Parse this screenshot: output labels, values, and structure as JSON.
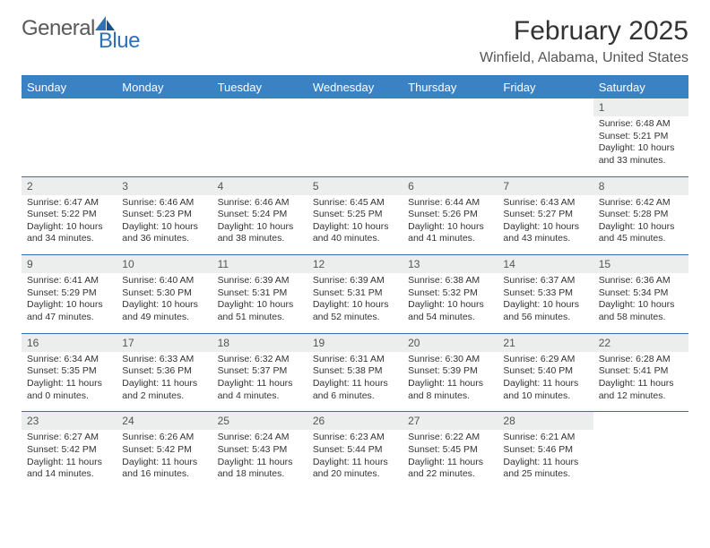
{
  "logo": {
    "part1": "General",
    "part2": "Blue"
  },
  "title": "February 2025",
  "location": "Winfield, Alabama, United States",
  "colors": {
    "header_bg": "#3b82c4",
    "daynum_bg": "#eceded",
    "divider": "#2f71b8"
  },
  "weekdays": [
    "Sunday",
    "Monday",
    "Tuesday",
    "Wednesday",
    "Thursday",
    "Friday",
    "Saturday"
  ],
  "weeks": [
    [
      null,
      null,
      null,
      null,
      null,
      null,
      {
        "d": "1",
        "sr": "Sunrise: 6:48 AM",
        "ss": "Sunset: 5:21 PM",
        "dl1": "Daylight: 10 hours",
        "dl2": "and 33 minutes."
      }
    ],
    [
      {
        "d": "2",
        "sr": "Sunrise: 6:47 AM",
        "ss": "Sunset: 5:22 PM",
        "dl1": "Daylight: 10 hours",
        "dl2": "and 34 minutes."
      },
      {
        "d": "3",
        "sr": "Sunrise: 6:46 AM",
        "ss": "Sunset: 5:23 PM",
        "dl1": "Daylight: 10 hours",
        "dl2": "and 36 minutes."
      },
      {
        "d": "4",
        "sr": "Sunrise: 6:46 AM",
        "ss": "Sunset: 5:24 PM",
        "dl1": "Daylight: 10 hours",
        "dl2": "and 38 minutes."
      },
      {
        "d": "5",
        "sr": "Sunrise: 6:45 AM",
        "ss": "Sunset: 5:25 PM",
        "dl1": "Daylight: 10 hours",
        "dl2": "and 40 minutes."
      },
      {
        "d": "6",
        "sr": "Sunrise: 6:44 AM",
        "ss": "Sunset: 5:26 PM",
        "dl1": "Daylight: 10 hours",
        "dl2": "and 41 minutes."
      },
      {
        "d": "7",
        "sr": "Sunrise: 6:43 AM",
        "ss": "Sunset: 5:27 PM",
        "dl1": "Daylight: 10 hours",
        "dl2": "and 43 minutes."
      },
      {
        "d": "8",
        "sr": "Sunrise: 6:42 AM",
        "ss": "Sunset: 5:28 PM",
        "dl1": "Daylight: 10 hours",
        "dl2": "and 45 minutes."
      }
    ],
    [
      {
        "d": "9",
        "sr": "Sunrise: 6:41 AM",
        "ss": "Sunset: 5:29 PM",
        "dl1": "Daylight: 10 hours",
        "dl2": "and 47 minutes."
      },
      {
        "d": "10",
        "sr": "Sunrise: 6:40 AM",
        "ss": "Sunset: 5:30 PM",
        "dl1": "Daylight: 10 hours",
        "dl2": "and 49 minutes."
      },
      {
        "d": "11",
        "sr": "Sunrise: 6:39 AM",
        "ss": "Sunset: 5:31 PM",
        "dl1": "Daylight: 10 hours",
        "dl2": "and 51 minutes."
      },
      {
        "d": "12",
        "sr": "Sunrise: 6:39 AM",
        "ss": "Sunset: 5:31 PM",
        "dl1": "Daylight: 10 hours",
        "dl2": "and 52 minutes."
      },
      {
        "d": "13",
        "sr": "Sunrise: 6:38 AM",
        "ss": "Sunset: 5:32 PM",
        "dl1": "Daylight: 10 hours",
        "dl2": "and 54 minutes."
      },
      {
        "d": "14",
        "sr": "Sunrise: 6:37 AM",
        "ss": "Sunset: 5:33 PM",
        "dl1": "Daylight: 10 hours",
        "dl2": "and 56 minutes."
      },
      {
        "d": "15",
        "sr": "Sunrise: 6:36 AM",
        "ss": "Sunset: 5:34 PM",
        "dl1": "Daylight: 10 hours",
        "dl2": "and 58 minutes."
      }
    ],
    [
      {
        "d": "16",
        "sr": "Sunrise: 6:34 AM",
        "ss": "Sunset: 5:35 PM",
        "dl1": "Daylight: 11 hours",
        "dl2": "and 0 minutes."
      },
      {
        "d": "17",
        "sr": "Sunrise: 6:33 AM",
        "ss": "Sunset: 5:36 PM",
        "dl1": "Daylight: 11 hours",
        "dl2": "and 2 minutes."
      },
      {
        "d": "18",
        "sr": "Sunrise: 6:32 AM",
        "ss": "Sunset: 5:37 PM",
        "dl1": "Daylight: 11 hours",
        "dl2": "and 4 minutes."
      },
      {
        "d": "19",
        "sr": "Sunrise: 6:31 AM",
        "ss": "Sunset: 5:38 PM",
        "dl1": "Daylight: 11 hours",
        "dl2": "and 6 minutes."
      },
      {
        "d": "20",
        "sr": "Sunrise: 6:30 AM",
        "ss": "Sunset: 5:39 PM",
        "dl1": "Daylight: 11 hours",
        "dl2": "and 8 minutes."
      },
      {
        "d": "21",
        "sr": "Sunrise: 6:29 AM",
        "ss": "Sunset: 5:40 PM",
        "dl1": "Daylight: 11 hours",
        "dl2": "and 10 minutes."
      },
      {
        "d": "22",
        "sr": "Sunrise: 6:28 AM",
        "ss": "Sunset: 5:41 PM",
        "dl1": "Daylight: 11 hours",
        "dl2": "and 12 minutes."
      }
    ],
    [
      {
        "d": "23",
        "sr": "Sunrise: 6:27 AM",
        "ss": "Sunset: 5:42 PM",
        "dl1": "Daylight: 11 hours",
        "dl2": "and 14 minutes."
      },
      {
        "d": "24",
        "sr": "Sunrise: 6:26 AM",
        "ss": "Sunset: 5:42 PM",
        "dl1": "Daylight: 11 hours",
        "dl2": "and 16 minutes."
      },
      {
        "d": "25",
        "sr": "Sunrise: 6:24 AM",
        "ss": "Sunset: 5:43 PM",
        "dl1": "Daylight: 11 hours",
        "dl2": "and 18 minutes."
      },
      {
        "d": "26",
        "sr": "Sunrise: 6:23 AM",
        "ss": "Sunset: 5:44 PM",
        "dl1": "Daylight: 11 hours",
        "dl2": "and 20 minutes."
      },
      {
        "d": "27",
        "sr": "Sunrise: 6:22 AM",
        "ss": "Sunset: 5:45 PM",
        "dl1": "Daylight: 11 hours",
        "dl2": "and 22 minutes."
      },
      {
        "d": "28",
        "sr": "Sunrise: 6:21 AM",
        "ss": "Sunset: 5:46 PM",
        "dl1": "Daylight: 11 hours",
        "dl2": "and 25 minutes."
      },
      null
    ]
  ]
}
